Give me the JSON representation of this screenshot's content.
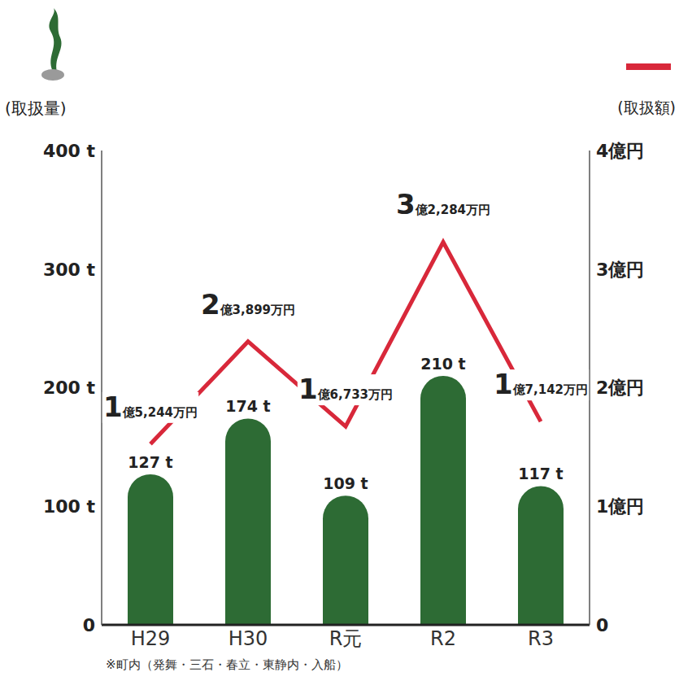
{
  "chart_data": {
    "type": "bar",
    "categories": [
      "H29",
      "H30",
      "R元",
      "R2",
      "R3"
    ],
    "y_label": "(取扱量)",
    "y2_label": "(取扱額)",
    "ylim": [
      0,
      400
    ],
    "yticks": [
      0,
      {
        "value": 100,
        "label": "100 t"
      },
      {
        "value": 200,
        "label": "200 t"
      },
      {
        "value": 300,
        "label": "300 t"
      },
      {
        "value": 400,
        "label": "400 t"
      }
    ],
    "y2lim": [
      0,
      4
    ],
    "y2ticks": [
      0,
      {
        "value": 1,
        "label": "1億円"
      },
      {
        "value": 2,
        "label": "2億円"
      },
      {
        "value": 3,
        "label": "3億円"
      },
      {
        "value": 4,
        "label": "4億円"
      }
    ],
    "series": [
      {
        "type": "bar",
        "color": "#2d6b34",
        "values": [
          127,
          174,
          109,
          210,
          117
        ],
        "value_labels": [
          "127 t",
          "174 t",
          "109 t",
          "210 t",
          "117 t"
        ],
        "data_labels": true
      },
      {
        "type": "line",
        "axis": "y2",
        "color": "#d8283a",
        "values": [
          1.5244,
          2.3899,
          1.6733,
          3.2284,
          1.7142
        ],
        "value_labels": [
          "1億5,244万円",
          "2億3,899万円",
          "1億6,733万円",
          "3億2,284万円",
          "1億7,142万円"
        ],
        "data_labels": true
      }
    ],
    "grid": false,
    "annotations": [
      "※町内（発舞・三石・春立・東静内・入船）"
    ]
  }
}
